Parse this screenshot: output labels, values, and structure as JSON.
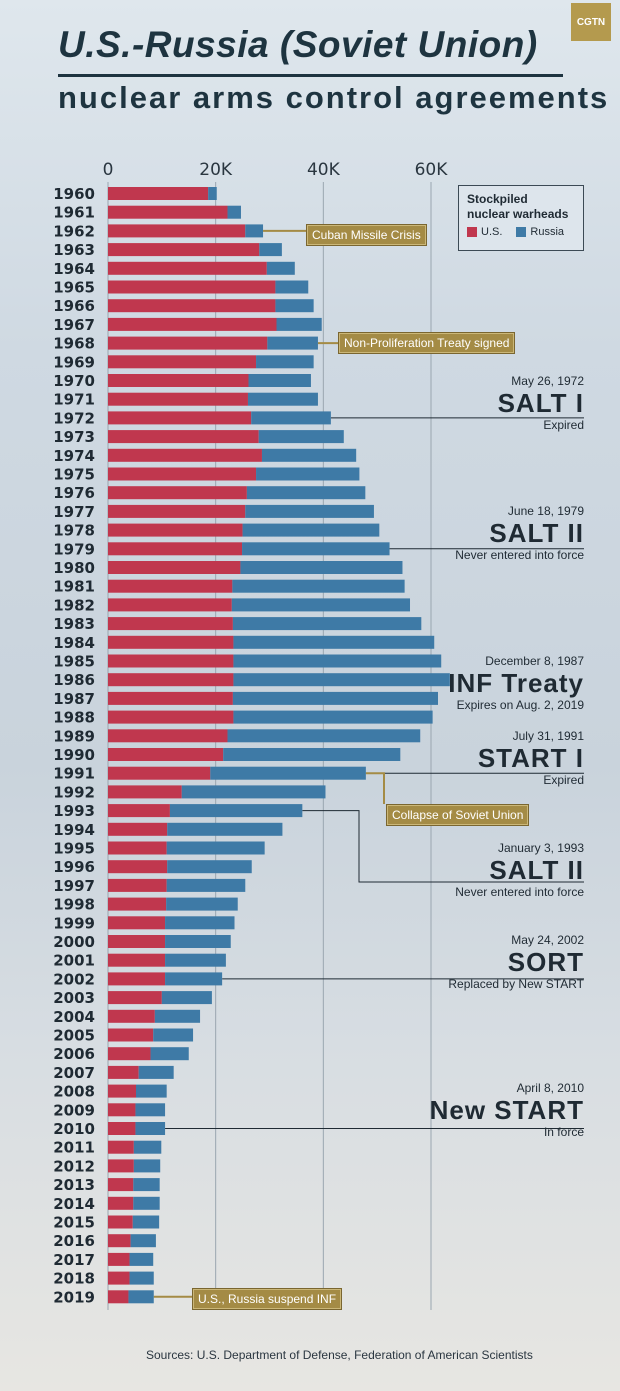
{
  "branding": {
    "logo_text": "CGTN"
  },
  "header": {
    "title_line1": "U.S.-Russia (Soviet Union)",
    "title_line2": "nuclear arms control agreements"
  },
  "legend": {
    "title": "Stockpiled\nnuclear warheads",
    "us_label": "U.S.",
    "russia_label": "Russia"
  },
  "colors": {
    "us": "#c0374e",
    "russia": "#3e7aa6",
    "callout": "#a48b45"
  },
  "chart_data": {
    "type": "bar",
    "orientation": "horizontal",
    "stacked": true,
    "title": "U.S.-Russia (Soviet Union) nuclear arms control agreements",
    "xlim": [
      0,
      70000
    ],
    "xticks": [
      "0",
      "20K",
      "40K",
      "60K"
    ],
    "xtick_values": [
      0,
      20000,
      40000,
      60000
    ],
    "grid": true,
    "legend_position": "top-right",
    "categories": [
      "1960",
      "1961",
      "1962",
      "1963",
      "1964",
      "1965",
      "1966",
      "1967",
      "1968",
      "1969",
      "1970",
      "1971",
      "1972",
      "1973",
      "1974",
      "1975",
      "1976",
      "1977",
      "1978",
      "1979",
      "1980",
      "1981",
      "1982",
      "1983",
      "1984",
      "1985",
      "1986",
      "1987",
      "1988",
      "1989",
      "1990",
      "1991",
      "1992",
      "1993",
      "1994",
      "1995",
      "1996",
      "1997",
      "1998",
      "1999",
      "2000",
      "2001",
      "2002",
      "2003",
      "2004",
      "2005",
      "2006",
      "2007",
      "2008",
      "2009",
      "2010",
      "2011",
      "2012",
      "2013",
      "2014",
      "2015",
      "2016",
      "2017",
      "2018",
      "2019"
    ],
    "series": [
      {
        "name": "U.S.",
        "values": [
          18600,
          22200,
          25500,
          28100,
          29500,
          31100,
          31100,
          31300,
          29600,
          27500,
          26100,
          26000,
          26600,
          28000,
          28600,
          27500,
          25800,
          25500,
          25000,
          24900,
          24600,
          23100,
          23000,
          23200,
          23300,
          23300,
          23300,
          23200,
          23300,
          22200,
          21400,
          19000,
          13700,
          11500,
          11000,
          10900,
          11000,
          10900,
          10800,
          10600,
          10600,
          10600,
          10600,
          10000,
          8700,
          8400,
          7900,
          5700,
          5200,
          5100,
          5100,
          4800,
          4800,
          4700,
          4700,
          4600,
          4200,
          4000,
          4000,
          3800
        ]
      },
      {
        "name": "Russia",
        "values": [
          1600,
          2500,
          3300,
          4200,
          5200,
          6100,
          7100,
          8400,
          9400,
          10700,
          11600,
          13000,
          14800,
          15800,
          17500,
          19200,
          22000,
          23900,
          25400,
          27400,
          30100,
          32000,
          33100,
          35000,
          37300,
          38600,
          40200,
          38100,
          37000,
          35800,
          32900,
          28900,
          26700,
          24600,
          21400,
          18200,
          15700,
          14600,
          13300,
          12900,
          12200,
          11300,
          10600,
          9300,
          8400,
          7400,
          7100,
          6500,
          5700,
          5500,
          5500,
          5100,
          4900,
          4900,
          4900,
          4900,
          4700,
          4400,
          4500,
          4700
        ]
      }
    ],
    "annotations": [
      {
        "year": "1962",
        "text": "Cuban Missile Crisis"
      },
      {
        "year": "1968",
        "text": "Non-Proliferation Treaty signed"
      },
      {
        "year": "1992",
        "text": "Collapse of Soviet Union"
      },
      {
        "year": "2019",
        "text": "U.S., Russia suspend INF"
      }
    ]
  },
  "callouts": {
    "cuban": "Cuban Missile Crisis",
    "npt": "Non-Proliferation Treaty signed",
    "collapse": "Collapse of Soviet Union",
    "inf_suspend": "U.S., Russia suspend INF"
  },
  "treaties": [
    {
      "date": "May 26, 1972",
      "name": "SALT I",
      "status": "Expired"
    },
    {
      "date": "June 18, 1979",
      "name": "SALT II",
      "status": "Never entered into force"
    },
    {
      "date": "December 8, 1987",
      "name": "INF Treaty",
      "status": "Expires on Aug. 2, 2019"
    },
    {
      "date": "July 31, 1991",
      "name": "START I",
      "status": "Expired"
    },
    {
      "date": "January 3, 1993",
      "name": "SALT II",
      "status": "Never entered into force"
    },
    {
      "date": "May 24, 2002",
      "name": "SORT",
      "status": "Replaced by New START"
    },
    {
      "date": "April 8, 2010",
      "name": "New START",
      "status": "In force"
    }
  ],
  "footer": {
    "sources": "Sources: U.S. Department of Defense, Federation of American Scientists"
  }
}
